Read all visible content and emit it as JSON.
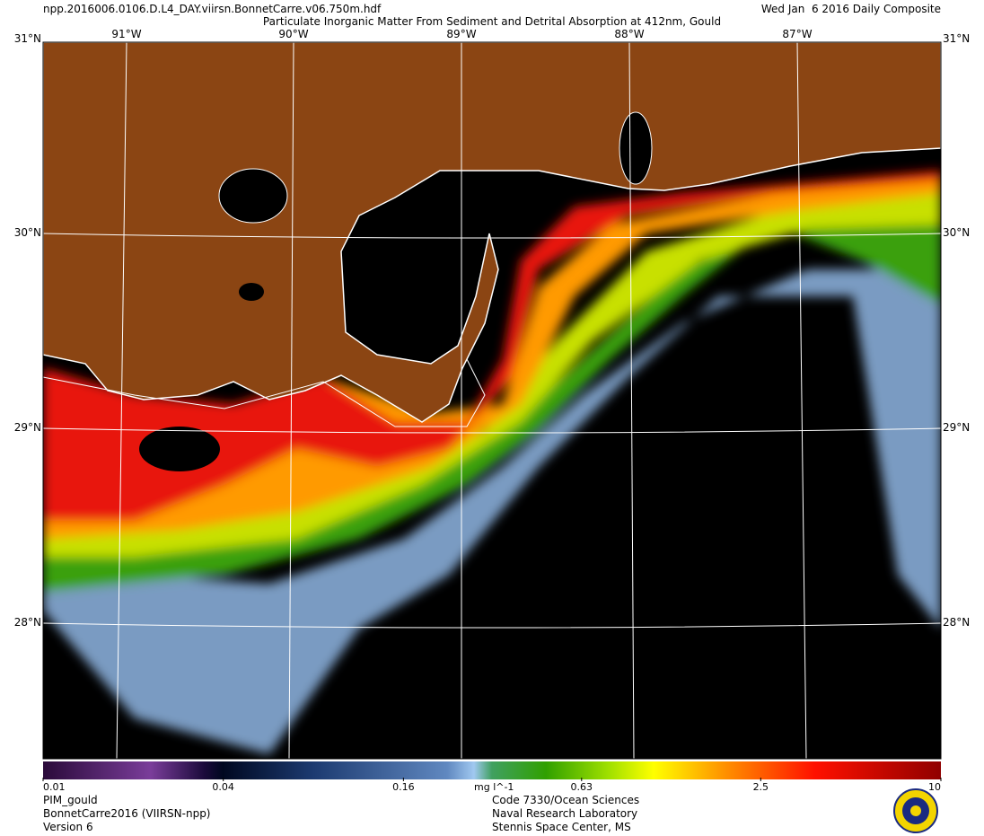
{
  "header": {
    "file": "npp.2016006.0106.D.L4_DAY.viirsn.BonnetCarre.v06.750m.hdf",
    "date": "Wed Jan  6 2016 Daily Composite",
    "title": "Particulate Inorganic Matter From Sediment and Detrital Absorption at 412nm, Gould"
  },
  "map": {
    "lon_labels": [
      "91°W",
      "90°W",
      "89°W",
      "88°W",
      "87°W"
    ],
    "lat_labels": [
      "31°N",
      "30°N",
      "29°N",
      "28°N"
    ]
  },
  "colorbar": {
    "lim": [
      0.01,
      10
    ],
    "log": true,
    "ticks": [
      0.01,
      0.04,
      0.16,
      0.63,
      2.5,
      10
    ],
    "unit": "mg l^-1"
  },
  "footer": {
    "left": [
      "PIM_gould",
      "BonnetCarre2016 (VIIRSN-npp)",
      "Version 6"
    ],
    "center": [
      "Code 7330/Ocean Sciences",
      "Naval Research Laboratory",
      "Stennis Space Center, MS"
    ]
  }
}
